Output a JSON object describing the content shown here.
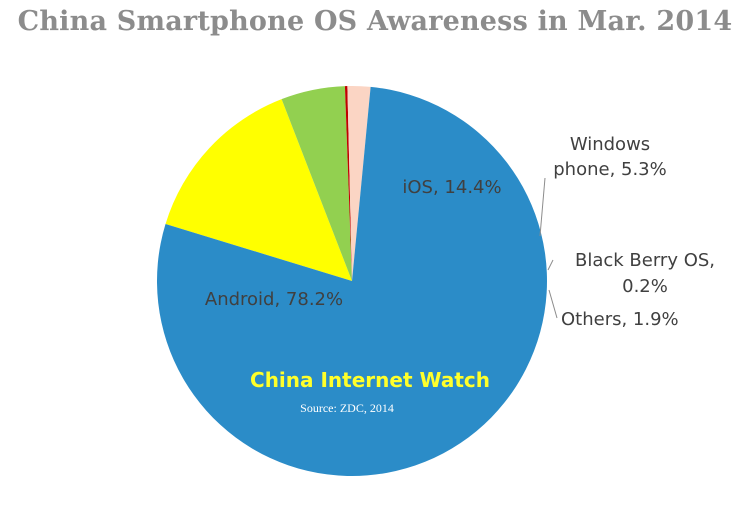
{
  "chart_data": {
    "type": "pie",
    "title": "China Smartphone OS Awareness in Mar. 2014",
    "slices": [
      {
        "name": "iOS",
        "value": 14.4,
        "color": "#ffff00",
        "label_lines": [
          "iOS, 14.4%"
        ]
      },
      {
        "name": "Windows phone",
        "value": 5.3,
        "color": "#92d050",
        "label_lines": [
          "Windows",
          "phone, 5.3%"
        ]
      },
      {
        "name": "Black Berry OS",
        "value": 0.2,
        "color": "#c00000",
        "label_lines": [
          "Black Berry OS,",
          "0.2%"
        ]
      },
      {
        "name": "Others",
        "value": 1.9,
        "color": "#fbd5c4",
        "label_lines": [
          "Others, 1.9%"
        ]
      },
      {
        "name": "Android",
        "value": 78.2,
        "color": "#2b8cc8",
        "label_lines": [
          "Android, 78.2%"
        ]
      }
    ]
  },
  "watermark": {
    "brand": "China Internet Watch",
    "source": "Source: ZDC, 2014"
  }
}
